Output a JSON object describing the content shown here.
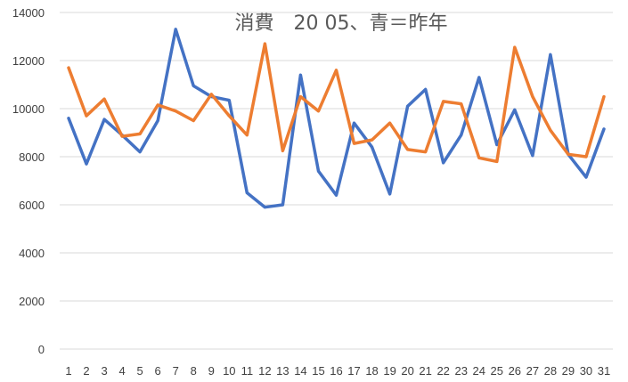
{
  "chart_data": {
    "type": "line",
    "title": "消費　20 05、青＝昨年",
    "xlabel": "",
    "ylabel": "",
    "categories": [
      "1",
      "2",
      "3",
      "4",
      "5",
      "6",
      "7",
      "8",
      "9",
      "10",
      "11",
      "12",
      "13",
      "14",
      "15",
      "16",
      "17",
      "18",
      "19",
      "20",
      "21",
      "22",
      "23",
      "24",
      "25",
      "26",
      "27",
      "28",
      "29",
      "30",
      "31"
    ],
    "ylim": [
      0,
      14000
    ],
    "yticks": [
      0,
      2000,
      4000,
      6000,
      8000,
      10000,
      12000,
      14000
    ],
    "grid": "horizontal",
    "legend": "none",
    "series": [
      {
        "color": "#4472C4",
        "values": [
          9600,
          7700,
          9550,
          8900,
          8200,
          9500,
          13300,
          10950,
          10500,
          10350,
          6500,
          5900,
          6000,
          11400,
          7400,
          6400,
          9400,
          8400,
          6450,
          10100,
          10800,
          7750,
          8900,
          11300,
          8500,
          9950,
          8050,
          12250,
          8100,
          7150,
          9150
        ]
      },
      {
        "color": "#ED7D31",
        "values": [
          11700,
          9700,
          10400,
          8850,
          8950,
          10150,
          9900,
          9500,
          10600,
          9700,
          8900,
          12700,
          8250,
          10500,
          9900,
          11600,
          8550,
          8700,
          9400,
          8300,
          8200,
          10300,
          10200,
          7950,
          7800,
          12550,
          10500,
          9100,
          8100,
          8000,
          10500
        ]
      }
    ]
  }
}
